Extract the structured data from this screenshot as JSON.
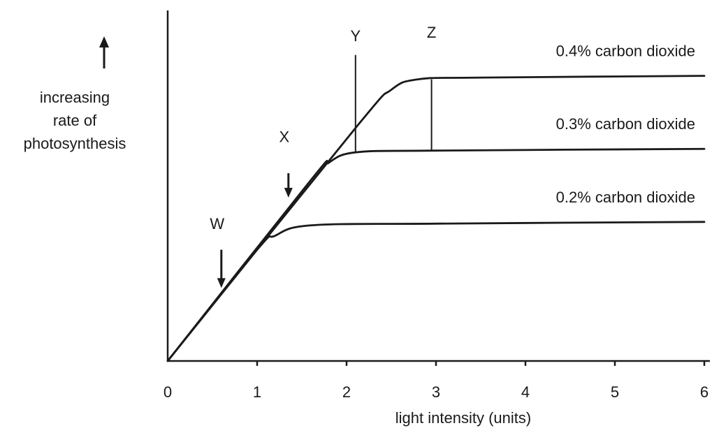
{
  "chart_data": {
    "type": "line",
    "title": "",
    "xlabel": "light intensity (units)",
    "ylabel": [
      "increasing",
      "rate of",
      "photosynthesis"
    ],
    "xlim": [
      0,
      6
    ],
    "ylim": [
      0,
      10
    ],
    "x_ticks": [
      "0",
      "1",
      "2",
      "3",
      "4",
      "5",
      "6"
    ],
    "grid": false,
    "series": [
      {
        "name": "0.4% carbon dioxide",
        "points": [
          [
            0,
            0
          ],
          [
            2.1,
            6.7
          ],
          [
            2.5,
            7.8
          ],
          [
            2.8,
            8.1
          ],
          [
            3.5,
            8.15
          ],
          [
            6,
            8.2
          ]
        ]
      },
      {
        "name": "0.3% carbon dioxide",
        "points": [
          [
            0,
            0
          ],
          [
            1.6,
            5.2
          ],
          [
            1.8,
            5.7
          ],
          [
            2.1,
            6.0
          ],
          [
            3.0,
            6.05
          ],
          [
            6,
            6.1
          ]
        ]
      },
      {
        "name": "0.2% carbon dioxide",
        "points": [
          [
            0,
            0
          ],
          [
            1.0,
            3.2
          ],
          [
            1.2,
            3.6
          ],
          [
            1.6,
            3.9
          ],
          [
            3.0,
            3.95
          ],
          [
            6,
            4.0
          ]
        ]
      }
    ],
    "markers": [
      {
        "label": "W",
        "x": 0.6,
        "type": "arrow",
        "y_top": 3.2,
        "y_bottom": 2.1,
        "label_y": 3.8
      },
      {
        "label": "X",
        "x": 1.35,
        "type": "arrow",
        "y_top": 5.4,
        "y_bottom": 4.7,
        "label_y": 6.3
      },
      {
        "label": "Y",
        "x": 2.1,
        "type": "line",
        "y_top": 8.8,
        "y_bottom": 6.0,
        "label_y": 9.2
      },
      {
        "label": "Z",
        "x": 2.95,
        "type": "line",
        "y_top": 8.1,
        "y_bottom": 6.05,
        "label_y": 9.3
      }
    ]
  }
}
